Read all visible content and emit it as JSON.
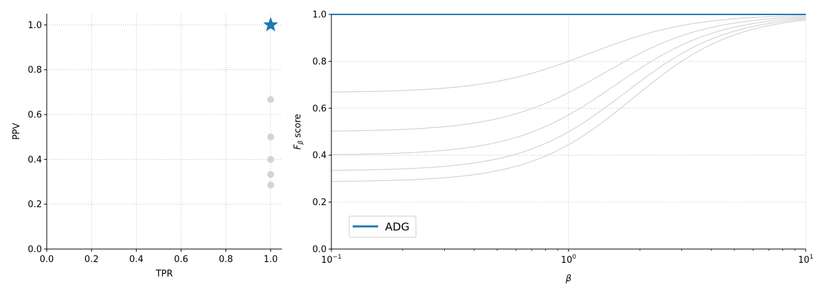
{
  "chart_data": [
    {
      "type": "scatter",
      "xlabel": "TPR",
      "ylabel": "PPV",
      "xlim": [
        0.0,
        1.05
      ],
      "ylim": [
        0.0,
        1.05
      ],
      "xticks": [
        "0.0",
        "0.2",
        "0.4",
        "0.6",
        "0.8",
        "1.0"
      ],
      "yticks": [
        "0.0",
        "0.2",
        "0.4",
        "0.6",
        "0.8",
        "1.0"
      ],
      "grid": true,
      "highlight_point": {
        "x": 1.0,
        "y": 1.0,
        "marker": "star",
        "color": "#1f77b4"
      },
      "other_points": [
        {
          "x": 1.0,
          "y": 0.667
        },
        {
          "x": 1.0,
          "y": 0.5
        },
        {
          "x": 1.0,
          "y": 0.4
        },
        {
          "x": 1.0,
          "y": 0.333
        },
        {
          "x": 1.0,
          "y": 0.286
        }
      ],
      "other_color": "#d3d3d3"
    },
    {
      "type": "line",
      "xlabel": "β",
      "ylabel_main": "F",
      "ylabel_sub": "β",
      "ylabel_rest": " score",
      "xscale": "log",
      "xlim": [
        0.1,
        10
      ],
      "ylim": [
        0.0,
        1.0
      ],
      "xticks": [
        {
          "value": 0.1,
          "base": "10",
          "exp": "−1"
        },
        {
          "value": 1,
          "base": "10",
          "exp": "0"
        },
        {
          "value": 10,
          "base": "10",
          "exp": "1"
        }
      ],
      "yticks": [
        "0.0",
        "0.2",
        "0.4",
        "0.6",
        "0.8",
        "1.0"
      ],
      "grid": true,
      "legend_position": "lower-left",
      "highlight_series": {
        "name": "ADG",
        "ppv": 1.0,
        "tpr": 1.0,
        "color": "#1f77b4"
      },
      "other_series": [
        {
          "ppv": 0.667,
          "tpr": 1.0
        },
        {
          "ppv": 0.5,
          "tpr": 1.0
        },
        {
          "ppv": 0.4,
          "tpr": 1.0
        },
        {
          "ppv": 0.333,
          "tpr": 1.0
        },
        {
          "ppv": 0.286,
          "tpr": 1.0
        }
      ],
      "other_color": "#d3d3d3"
    }
  ]
}
